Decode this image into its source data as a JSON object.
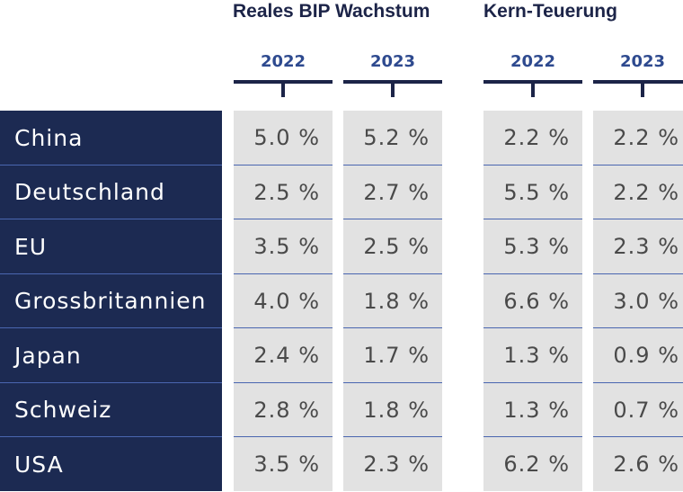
{
  "chart_data": {
    "type": "table",
    "groups": [
      {
        "title": "Reales BIP Wachstum",
        "years": [
          "2022",
          "2023"
        ]
      },
      {
        "title": "Kern-Teuerung",
        "years": [
          "2022",
          "2023"
        ]
      }
    ],
    "rows": [
      {
        "label": "China",
        "values": [
          "5.0 %",
          "5.2 %",
          "2.2 %",
          "2.2 %"
        ]
      },
      {
        "label": "Deutschland",
        "values": [
          "2.5 %",
          "2.7 %",
          "5.5 %",
          "2.2 %"
        ]
      },
      {
        "label": "EU",
        "values": [
          "3.5 %",
          "2.5 %",
          "5.3 %",
          "2.3 %"
        ]
      },
      {
        "label": "Grossbritannien",
        "values": [
          "4.0 %",
          "1.8 %",
          "6.6 %",
          "3.0 %"
        ]
      },
      {
        "label": "Japan",
        "values": [
          "2.4 %",
          "1.7 %",
          "1.3 %",
          "0.9 %"
        ]
      },
      {
        "label": "Schweiz",
        "values": [
          "2.8 %",
          "1.8 %",
          "1.3 %",
          "0.7 %"
        ]
      },
      {
        "label": "USA",
        "values": [
          "3.5 %",
          "2.3 %",
          "6.2 %",
          "2.6 %"
        ]
      }
    ]
  },
  "colors": {
    "label_bg": "#1c2a52",
    "cell_bg": "#e2e2e2",
    "header_text": "#1c2448",
    "year_text": "#2e4a8f",
    "separator": "#4a66b0",
    "value_text": "#4a4a4a"
  }
}
